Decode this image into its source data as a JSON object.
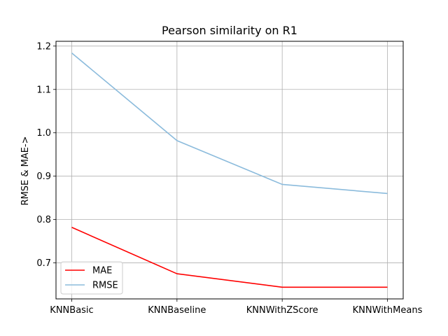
{
  "chart_data": {
    "type": "line",
    "title": "Pearson similarity on R1",
    "xlabel": "",
    "ylabel": "RMSE & MAE->",
    "categories": [
      "KNNBasic",
      "KNNBaseline",
      "KNNWithZScore",
      "KNNWithMeans"
    ],
    "series": [
      {
        "name": "MAE",
        "values": [
          0.782,
          0.675,
          0.644,
          0.644
        ],
        "color": "#ff0000"
      },
      {
        "name": "RMSE",
        "values": [
          1.184,
          0.982,
          0.881,
          0.86
        ],
        "color": "#8bbbdc"
      }
    ],
    "ylim": [
      0.617,
      1.211
    ],
    "yticks": [
      0.7,
      0.8,
      0.9,
      1.0,
      1.1,
      1.2
    ],
    "ytick_labels": [
      "0.7",
      "0.8",
      "0.9",
      "1.0",
      "1.1",
      "1.2"
    ],
    "grid": true,
    "grid_color": "#b0b0b0",
    "legend_position": "lower-left"
  }
}
